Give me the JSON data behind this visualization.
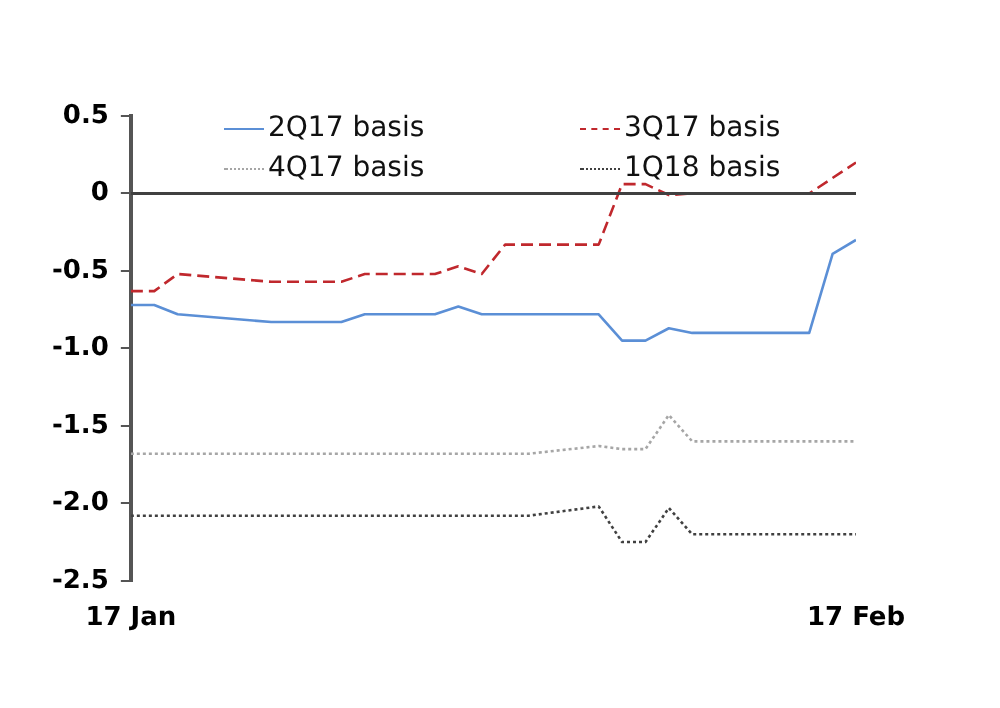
{
  "chart_data": {
    "type": "line",
    "legend": "top",
    "ref_lines": [
      {
        "axis": "y",
        "value": 0,
        "color": "#404040"
      }
    ],
    "grid": false,
    "marker": "none",
    "xlim": [
      "--01-17",
      "--02-17"
    ],
    "xticks": [
      {
        "value": "--01-17",
        "label": "17 Jan"
      },
      {
        "value": "--02-17",
        "label": "17 Feb"
      }
    ],
    "ylim": [
      -2.5,
      0.5
    ],
    "yticks": [
      0.5,
      0,
      -0.5,
      {
        "value": -1,
        "label": "-1.0"
      },
      {
        "value": -1.5,
        "label": "-1.5"
      },
      {
        "value": -2,
        "label": "-2.0"
      },
      -2.5
    ],
    "series": [
      {
        "name": "2Q17 basis",
        "color": "#5b8fd6",
        "line_style": "solid",
        "x": [
          "--01-17",
          "--01-18",
          "--01-19",
          "--01-23",
          "--01-26",
          "--01-27",
          "--01-30",
          "--01-31",
          "--02-01",
          "--02-06",
          "--02-07",
          "--02-08",
          "--02-09",
          "--02-10",
          "--02-15",
          "--02-16",
          "--02-17"
        ],
        "values": [
          -0.72,
          -0.72,
          -0.78,
          -0.83,
          -0.83,
          -0.78,
          -0.78,
          -0.73,
          -0.78,
          -0.78,
          -0.95,
          -0.95,
          -0.87,
          -0.9,
          -0.9,
          -0.39,
          -0.3
        ]
      },
      {
        "name": "3Q17 basis",
        "color": "#c0282d",
        "line_style": "dashed",
        "x": [
          "--01-17",
          "--01-18",
          "--01-19",
          "--01-23",
          "--01-26",
          "--01-27",
          "--01-30",
          "--01-31",
          "--02-01",
          "--02-02",
          "--02-06",
          "--02-07",
          "--02-08",
          "--02-09",
          "--02-10",
          "--02-15",
          "--02-17"
        ],
        "values": [
          -0.63,
          -0.63,
          -0.52,
          -0.57,
          -0.57,
          -0.52,
          -0.52,
          -0.47,
          -0.52,
          -0.33,
          -0.33,
          0.06,
          0.06,
          -0.01,
          0,
          0,
          0.2
        ]
      },
      {
        "name": "4Q17 basis",
        "color": "#a6a6a6",
        "line_style": "dotted",
        "x": [
          "--01-17",
          "--02-03",
          "--02-06",
          "--02-07",
          "--02-08",
          "--02-09",
          "--02-10",
          "--02-17"
        ],
        "values": [
          -1.68,
          -1.68,
          -1.63,
          -1.65,
          -1.65,
          -1.43,
          -1.6,
          -1.6
        ]
      },
      {
        "name": "1Q18 basis",
        "color": "#404040",
        "line_style": "dotted",
        "x": [
          "--01-17",
          "--02-03",
          "--02-06",
          "--02-07",
          "--02-08",
          "--02-09",
          "--02-10",
          "--02-17"
        ],
        "values": [
          -2.08,
          -2.08,
          -2.02,
          -2.25,
          -2.25,
          -2.03,
          -2.2,
          -2.2
        ]
      }
    ]
  }
}
